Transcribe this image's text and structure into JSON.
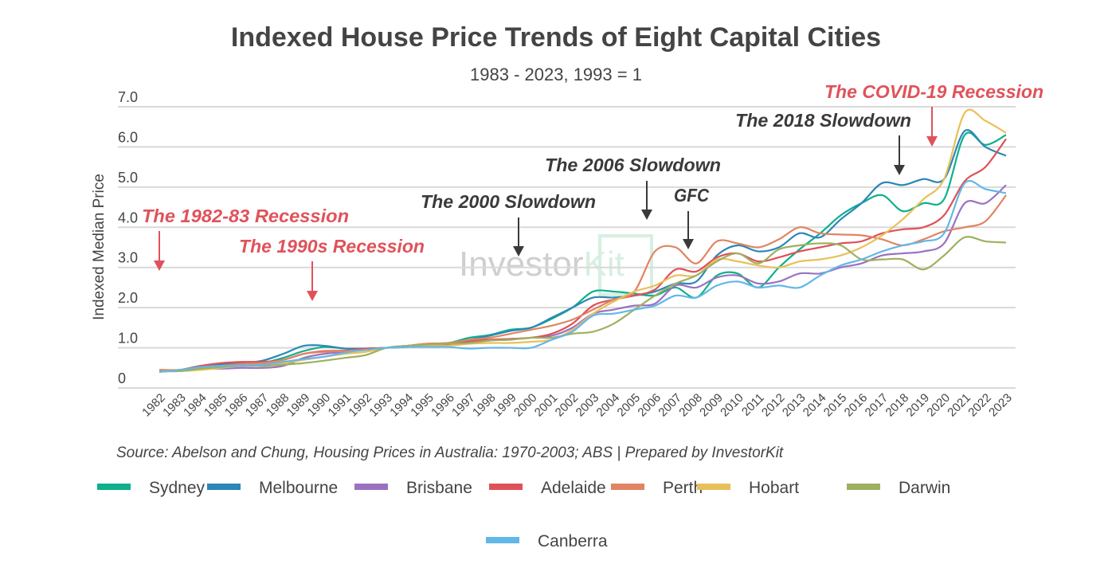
{
  "chart_data": {
    "type": "line",
    "title": "Indexed House Price Trends of Eight Capital Cities",
    "subtitle": "1983 - 2023, 1993 = 1",
    "ylabel": "Indexed Median Price",
    "xlabel": "",
    "ylim": [
      0,
      7
    ],
    "yticks": [
      "0",
      "1.0",
      "2.0",
      "3.0",
      "4.0",
      "5.0",
      "6.0",
      "7.0"
    ],
    "x": [
      1982,
      1983,
      1984,
      1985,
      1986,
      1987,
      1988,
      1989,
      1990,
      1991,
      1992,
      1993,
      1994,
      1995,
      1996,
      1997,
      1998,
      1999,
      2000,
      2001,
      2002,
      2003,
      2004,
      2005,
      2006,
      2007,
      2008,
      2009,
      2010,
      2011,
      2012,
      2013,
      2014,
      2015,
      2016,
      2017,
      2018,
      2019,
      2020,
      2021,
      2022,
      2023
    ],
    "grid": true,
    "legend_position": "bottom",
    "series": [
      {
        "name": "Sydney",
        "color": "#0fb08b",
        "values": [
          0.42,
          0.45,
          0.52,
          0.58,
          0.6,
          0.62,
          0.75,
          0.92,
          1.02,
          0.98,
          0.98,
          1.0,
          1.04,
          1.1,
          1.12,
          1.25,
          1.32,
          1.45,
          1.5,
          1.72,
          2.0,
          2.4,
          2.4,
          2.35,
          2.3,
          2.5,
          2.25,
          2.8,
          2.85,
          2.5,
          3.0,
          3.45,
          3.85,
          4.3,
          4.6,
          4.8,
          4.4,
          4.6,
          4.7,
          6.3,
          6.05,
          6.3
        ]
      },
      {
        "name": "Melbourne",
        "color": "#2a87b8",
        "values": [
          0.4,
          0.45,
          0.55,
          0.6,
          0.62,
          0.68,
          0.85,
          1.05,
          1.05,
          0.98,
          0.98,
          1.0,
          1.02,
          1.05,
          1.1,
          1.2,
          1.3,
          1.42,
          1.5,
          1.75,
          2.0,
          2.25,
          2.25,
          2.3,
          2.4,
          2.6,
          2.65,
          3.3,
          3.55,
          3.4,
          3.5,
          3.85,
          3.75,
          4.2,
          4.6,
          5.1,
          5.05,
          5.2,
          5.2,
          6.4,
          6.0,
          5.78
        ]
      },
      {
        "name": "Brisbane",
        "color": "#9a72c0",
        "values": [
          0.42,
          0.42,
          0.48,
          0.48,
          0.5,
          0.5,
          0.55,
          0.75,
          0.85,
          0.9,
          0.95,
          1.0,
          1.05,
          1.08,
          1.1,
          1.18,
          1.2,
          1.22,
          1.25,
          1.3,
          1.5,
          1.85,
          1.95,
          2.05,
          2.1,
          2.55,
          2.5,
          2.75,
          2.8,
          2.6,
          2.65,
          2.85,
          2.85,
          3.0,
          3.1,
          3.3,
          3.35,
          3.4,
          3.6,
          4.6,
          4.6,
          5.05
        ]
      },
      {
        "name": "Adelaide",
        "color": "#df5158",
        "values": [
          0.45,
          0.45,
          0.55,
          0.62,
          0.65,
          0.65,
          0.7,
          0.85,
          0.92,
          0.93,
          0.98,
          1.0,
          1.05,
          1.1,
          1.08,
          1.15,
          1.2,
          1.22,
          1.25,
          1.35,
          1.6,
          2.05,
          2.2,
          2.3,
          2.45,
          2.95,
          2.9,
          3.25,
          3.35,
          3.15,
          3.25,
          3.4,
          3.5,
          3.6,
          3.65,
          3.85,
          3.95,
          4.0,
          4.3,
          5.15,
          5.5,
          6.2
        ]
      },
      {
        "name": "Perth",
        "color": "#e08463",
        "values": [
          0.45,
          0.45,
          0.5,
          0.55,
          0.6,
          0.62,
          0.7,
          0.85,
          0.9,
          0.92,
          0.95,
          1.0,
          1.05,
          1.1,
          1.12,
          1.2,
          1.25,
          1.35,
          1.45,
          1.55,
          1.7,
          1.95,
          2.2,
          2.4,
          3.4,
          3.5,
          3.1,
          3.65,
          3.6,
          3.5,
          3.7,
          4.0,
          3.85,
          3.82,
          3.8,
          3.7,
          3.55,
          3.7,
          3.9,
          4.0,
          4.15,
          4.8
        ]
      },
      {
        "name": "Hobart",
        "color": "#e8c05a",
        "values": [
          0.42,
          0.42,
          0.45,
          0.5,
          0.55,
          0.58,
          0.62,
          0.7,
          0.78,
          0.85,
          0.9,
          1.0,
          1.05,
          1.05,
          1.05,
          1.1,
          1.12,
          1.12,
          1.15,
          1.2,
          1.45,
          1.85,
          2.15,
          2.4,
          2.55,
          2.8,
          2.8,
          3.2,
          3.15,
          3.05,
          3.0,
          3.15,
          3.2,
          3.3,
          3.5,
          3.8,
          4.2,
          4.7,
          5.2,
          6.85,
          6.65,
          6.35
        ]
      },
      {
        "name": "Darwin",
        "color": "#9eb060",
        "values": [
          0.42,
          0.42,
          0.48,
          0.52,
          0.55,
          0.55,
          0.58,
          0.62,
          0.68,
          0.75,
          0.82,
          1.0,
          1.05,
          1.08,
          1.1,
          1.12,
          1.18,
          1.2,
          1.25,
          1.25,
          1.35,
          1.4,
          1.6,
          1.95,
          2.3,
          2.6,
          2.8,
          3.15,
          3.35,
          3.1,
          3.45,
          3.55,
          3.6,
          3.55,
          3.2,
          3.2,
          3.2,
          2.95,
          3.3,
          3.75,
          3.65,
          3.62
        ]
      },
      {
        "name": "Canberra",
        "color": "#62b7e8",
        "values": [
          0.4,
          0.45,
          0.52,
          0.55,
          0.55,
          0.58,
          0.65,
          0.72,
          0.78,
          0.88,
          0.95,
          1.0,
          1.02,
          1.02,
          1.02,
          0.98,
          1.0,
          1.0,
          1.0,
          1.2,
          1.4,
          1.8,
          1.85,
          1.95,
          2.05,
          2.3,
          2.25,
          2.55,
          2.65,
          2.5,
          2.55,
          2.5,
          2.8,
          3.05,
          3.2,
          3.4,
          3.55,
          3.65,
          3.85,
          5.1,
          4.95,
          4.85
        ]
      }
    ],
    "annotations": [
      {
        "text": "The 1982-83 Recession",
        "kind": "recession",
        "color": "#e0525a"
      },
      {
        "text": "The 1990s Recession",
        "kind": "recession",
        "color": "#e0525a"
      },
      {
        "text": "The 2000 Slowdown",
        "kind": "slowdown",
        "color": "#3a3a3a"
      },
      {
        "text": "The 2006 Slowdown",
        "kind": "slowdown",
        "color": "#3a3a3a"
      },
      {
        "text": "GFC",
        "kind": "slowdown",
        "color": "#3a3a3a"
      },
      {
        "text": "The 2018 Slowdown",
        "kind": "slowdown",
        "color": "#3a3a3a"
      },
      {
        "text": "The COVID-19 Recession",
        "kind": "recession",
        "color": "#e0525a"
      }
    ],
    "source": "Source: Abelson and Chung, Housing Prices in Australia: 1970-2003; ABS | Prepared by InvestorKit",
    "watermark": "InvestorKit"
  }
}
